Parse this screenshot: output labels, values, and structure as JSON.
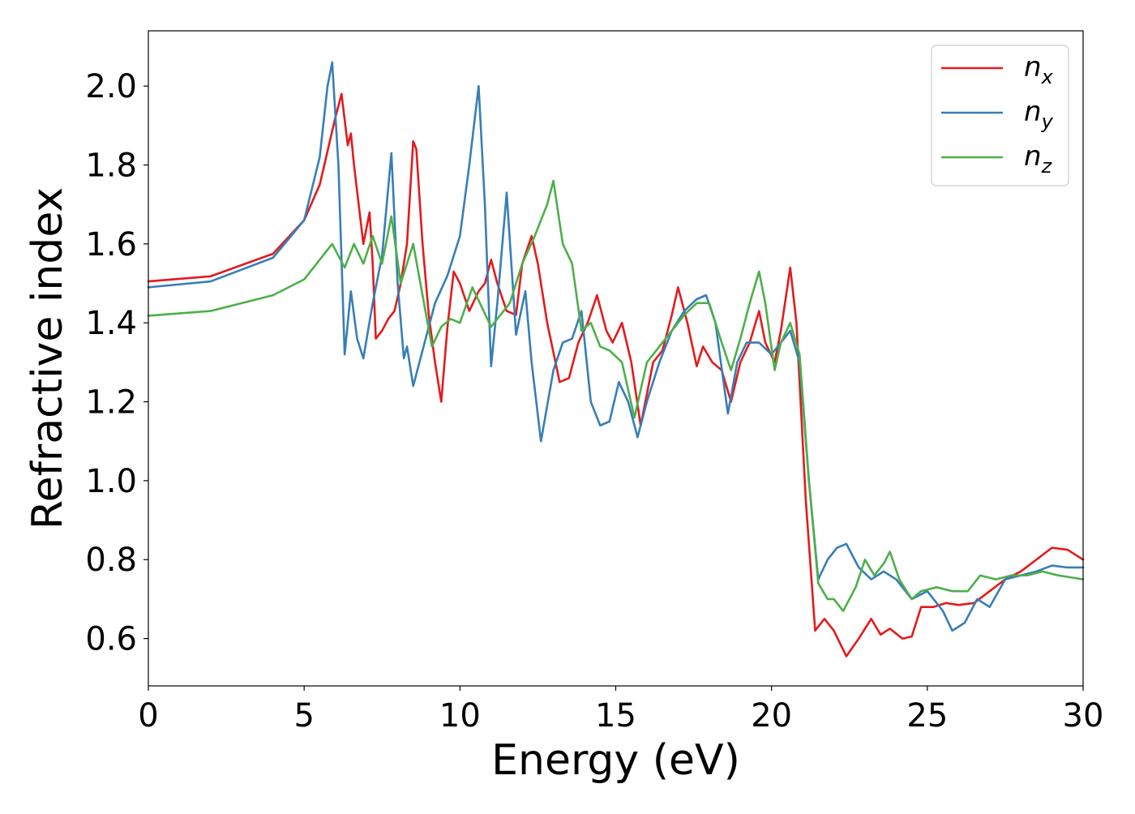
{
  "chart_data": {
    "type": "line",
    "xlabel": "Energy (eV)",
    "ylabel": "Refractive index",
    "xlim": [
      0,
      30
    ],
    "ylim": [
      0.48,
      2.14
    ],
    "xticks": [
      0,
      5,
      10,
      15,
      20,
      25,
      30
    ],
    "xtick_labels": [
      "0",
      "5",
      "10",
      "15",
      "20",
      "25",
      "30"
    ],
    "yticks": [
      0.6,
      0.8,
      1.0,
      1.2,
      1.4,
      1.6,
      1.8,
      2.0
    ],
    "ytick_labels": [
      "0.6",
      "0.8",
      "1.0",
      "1.2",
      "1.4",
      "1.6",
      "1.8",
      "2.0"
    ],
    "grid": false,
    "legend_position": "top-right",
    "series": [
      {
        "name": "n",
        "subscript": "x",
        "color": "#e41a1c",
        "points": [
          [
            0,
            1.505
          ],
          [
            2,
            1.518
          ],
          [
            4,
            1.575
          ],
          [
            5,
            1.66
          ],
          [
            5.5,
            1.75
          ],
          [
            6.0,
            1.92
          ],
          [
            6.2,
            1.98
          ],
          [
            6.4,
            1.85
          ],
          [
            6.5,
            1.88
          ],
          [
            6.6,
            1.8
          ],
          [
            6.9,
            1.6
          ],
          [
            7.1,
            1.68
          ],
          [
            7.2,
            1.55
          ],
          [
            7.3,
            1.36
          ],
          [
            7.5,
            1.38
          ],
          [
            7.7,
            1.41
          ],
          [
            7.9,
            1.43
          ],
          [
            8.1,
            1.5
          ],
          [
            8.3,
            1.6
          ],
          [
            8.5,
            1.86
          ],
          [
            8.6,
            1.84
          ],
          [
            8.8,
            1.6
          ],
          [
            9.0,
            1.42
          ],
          [
            9.2,
            1.3
          ],
          [
            9.4,
            1.2
          ],
          [
            9.6,
            1.39
          ],
          [
            9.8,
            1.53
          ],
          [
            10.0,
            1.5
          ],
          [
            10.3,
            1.43
          ],
          [
            10.6,
            1.48
          ],
          [
            10.8,
            1.5
          ],
          [
            11.0,
            1.56
          ],
          [
            11.2,
            1.5
          ],
          [
            11.5,
            1.43
          ],
          [
            11.8,
            1.42
          ],
          [
            12.0,
            1.55
          ],
          [
            12.3,
            1.62
          ],
          [
            12.5,
            1.55
          ],
          [
            12.8,
            1.4
          ],
          [
            13.2,
            1.25
          ],
          [
            13.5,
            1.26
          ],
          [
            13.8,
            1.35
          ],
          [
            14.1,
            1.4
          ],
          [
            14.4,
            1.47
          ],
          [
            14.7,
            1.38
          ],
          [
            14.9,
            1.35
          ],
          [
            15.2,
            1.4
          ],
          [
            15.5,
            1.3
          ],
          [
            15.8,
            1.14
          ],
          [
            16.2,
            1.3
          ],
          [
            16.5,
            1.33
          ],
          [
            16.8,
            1.42
          ],
          [
            17.0,
            1.49
          ],
          [
            17.3,
            1.4
          ],
          [
            17.6,
            1.29
          ],
          [
            17.8,
            1.34
          ],
          [
            18.1,
            1.3
          ],
          [
            18.4,
            1.28
          ],
          [
            18.7,
            1.2
          ],
          [
            19.0,
            1.3
          ],
          [
            19.3,
            1.35
          ],
          [
            19.6,
            1.43
          ],
          [
            19.8,
            1.35
          ],
          [
            20.1,
            1.3
          ],
          [
            20.3,
            1.38
          ],
          [
            20.6,
            1.54
          ],
          [
            20.8,
            1.4
          ],
          [
            21.1,
            0.95
          ],
          [
            21.4,
            0.62
          ],
          [
            21.7,
            0.65
          ],
          [
            22.0,
            0.62
          ],
          [
            22.4,
            0.555
          ],
          [
            22.8,
            0.6
          ],
          [
            23.2,
            0.65
          ],
          [
            23.5,
            0.61
          ],
          [
            23.8,
            0.625
          ],
          [
            24.2,
            0.6
          ],
          [
            24.5,
            0.605
          ],
          [
            24.8,
            0.68
          ],
          [
            25.2,
            0.68
          ],
          [
            25.6,
            0.69
          ],
          [
            26.0,
            0.685
          ],
          [
            26.5,
            0.69
          ],
          [
            27.0,
            0.72
          ],
          [
            27.5,
            0.75
          ],
          [
            28.0,
            0.77
          ],
          [
            28.5,
            0.8
          ],
          [
            29.0,
            0.83
          ],
          [
            29.5,
            0.825
          ],
          [
            30.0,
            0.8
          ]
        ]
      },
      {
        "name": "n",
        "subscript": "y",
        "color": "#377eb8",
        "points": [
          [
            0,
            1.49
          ],
          [
            2,
            1.505
          ],
          [
            4,
            1.565
          ],
          [
            5,
            1.66
          ],
          [
            5.5,
            1.82
          ],
          [
            5.75,
            2.0
          ],
          [
            5.9,
            2.06
          ],
          [
            6.1,
            1.8
          ],
          [
            6.3,
            1.32
          ],
          [
            6.5,
            1.48
          ],
          [
            6.7,
            1.36
          ],
          [
            6.9,
            1.31
          ],
          [
            7.2,
            1.45
          ],
          [
            7.5,
            1.57
          ],
          [
            7.8,
            1.83
          ],
          [
            8.0,
            1.5
          ],
          [
            8.2,
            1.31
          ],
          [
            8.3,
            1.34
          ],
          [
            8.5,
            1.24
          ],
          [
            8.8,
            1.33
          ],
          [
            9.2,
            1.45
          ],
          [
            9.6,
            1.52
          ],
          [
            10.0,
            1.62
          ],
          [
            10.3,
            1.8
          ],
          [
            10.6,
            2.0
          ],
          [
            10.8,
            1.7
          ],
          [
            11.0,
            1.29
          ],
          [
            11.2,
            1.45
          ],
          [
            11.5,
            1.73
          ],
          [
            11.8,
            1.37
          ],
          [
            12.1,
            1.48
          ],
          [
            12.3,
            1.3
          ],
          [
            12.6,
            1.1
          ],
          [
            13.0,
            1.28
          ],
          [
            13.3,
            1.35
          ],
          [
            13.6,
            1.36
          ],
          [
            13.9,
            1.43
          ],
          [
            14.2,
            1.2
          ],
          [
            14.5,
            1.14
          ],
          [
            14.8,
            1.15
          ],
          [
            15.1,
            1.25
          ],
          [
            15.4,
            1.2
          ],
          [
            15.7,
            1.11
          ],
          [
            16.0,
            1.2
          ],
          [
            16.4,
            1.3
          ],
          [
            16.8,
            1.38
          ],
          [
            17.2,
            1.43
          ],
          [
            17.6,
            1.46
          ],
          [
            17.9,
            1.47
          ],
          [
            18.2,
            1.4
          ],
          [
            18.6,
            1.17
          ],
          [
            18.9,
            1.3
          ],
          [
            19.2,
            1.35
          ],
          [
            19.6,
            1.35
          ],
          [
            20.0,
            1.32
          ],
          [
            20.4,
            1.36
          ],
          [
            20.6,
            1.38
          ],
          [
            20.9,
            1.3
          ],
          [
            21.2,
            1.0
          ],
          [
            21.5,
            0.75
          ],
          [
            21.8,
            0.8
          ],
          [
            22.1,
            0.83
          ],
          [
            22.4,
            0.84
          ],
          [
            22.8,
            0.78
          ],
          [
            23.2,
            0.75
          ],
          [
            23.6,
            0.77
          ],
          [
            24.0,
            0.75
          ],
          [
            24.5,
            0.7
          ],
          [
            25.0,
            0.72
          ],
          [
            25.5,
            0.67
          ],
          [
            25.8,
            0.62
          ],
          [
            26.2,
            0.64
          ],
          [
            26.6,
            0.7
          ],
          [
            27.0,
            0.68
          ],
          [
            27.5,
            0.75
          ],
          [
            28.0,
            0.76
          ],
          [
            28.5,
            0.77
          ],
          [
            29.0,
            0.785
          ],
          [
            29.5,
            0.78
          ],
          [
            30.0,
            0.78
          ]
        ]
      },
      {
        "name": "n",
        "subscript": "z",
        "color": "#4daf4a",
        "points": [
          [
            0,
            1.418
          ],
          [
            2,
            1.43
          ],
          [
            4,
            1.47
          ],
          [
            5,
            1.51
          ],
          [
            5.5,
            1.56
          ],
          [
            5.9,
            1.6
          ],
          [
            6.3,
            1.54
          ],
          [
            6.6,
            1.6
          ],
          [
            6.9,
            1.55
          ],
          [
            7.2,
            1.62
          ],
          [
            7.5,
            1.55
          ],
          [
            7.8,
            1.67
          ],
          [
            8.1,
            1.5
          ],
          [
            8.5,
            1.6
          ],
          [
            8.8,
            1.47
          ],
          [
            9.1,
            1.34
          ],
          [
            9.4,
            1.39
          ],
          [
            9.7,
            1.41
          ],
          [
            10.0,
            1.4
          ],
          [
            10.4,
            1.49
          ],
          [
            10.7,
            1.44
          ],
          [
            11.0,
            1.39
          ],
          [
            11.3,
            1.42
          ],
          [
            11.6,
            1.45
          ],
          [
            12.0,
            1.55
          ],
          [
            12.4,
            1.62
          ],
          [
            12.8,
            1.7
          ],
          [
            13.0,
            1.76
          ],
          [
            13.3,
            1.6
          ],
          [
            13.6,
            1.55
          ],
          [
            13.9,
            1.38
          ],
          [
            14.2,
            1.4
          ],
          [
            14.5,
            1.34
          ],
          [
            14.8,
            1.33
          ],
          [
            15.2,
            1.3
          ],
          [
            15.6,
            1.16
          ],
          [
            16.0,
            1.3
          ],
          [
            16.4,
            1.34
          ],
          [
            16.8,
            1.38
          ],
          [
            17.2,
            1.42
          ],
          [
            17.6,
            1.45
          ],
          [
            18.0,
            1.45
          ],
          [
            18.4,
            1.35
          ],
          [
            18.7,
            1.28
          ],
          [
            19.0,
            1.36
          ],
          [
            19.3,
            1.45
          ],
          [
            19.6,
            1.53
          ],
          [
            19.8,
            1.45
          ],
          [
            20.1,
            1.28
          ],
          [
            20.3,
            1.35
          ],
          [
            20.6,
            1.4
          ],
          [
            20.9,
            1.32
          ],
          [
            21.2,
            1.0
          ],
          [
            21.5,
            0.74
          ],
          [
            21.8,
            0.7
          ],
          [
            22.0,
            0.7
          ],
          [
            22.3,
            0.67
          ],
          [
            22.7,
            0.73
          ],
          [
            23.0,
            0.8
          ],
          [
            23.3,
            0.76
          ],
          [
            23.6,
            0.79
          ],
          [
            23.8,
            0.82
          ],
          [
            24.1,
            0.75
          ],
          [
            24.5,
            0.7
          ],
          [
            24.8,
            0.72
          ],
          [
            25.3,
            0.73
          ],
          [
            25.8,
            0.72
          ],
          [
            26.3,
            0.72
          ],
          [
            26.7,
            0.76
          ],
          [
            27.2,
            0.75
          ],
          [
            27.7,
            0.76
          ],
          [
            28.2,
            0.76
          ],
          [
            28.7,
            0.77
          ],
          [
            29.2,
            0.76
          ],
          [
            29.6,
            0.755
          ],
          [
            30.0,
            0.75
          ]
        ]
      }
    ]
  }
}
